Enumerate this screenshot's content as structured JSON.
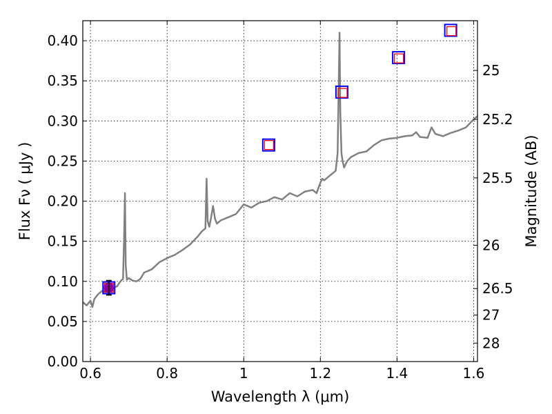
{
  "chart_data": {
    "type": "line",
    "title": "",
    "xlabel": "Wavelength  λ (μm)",
    "ylabel": "Flux  Fν  ( μJy )",
    "y2label": "Magnitude (AB)",
    "xlim": [
      0.58,
      1.61
    ],
    "ylim": [
      0.0,
      0.425
    ],
    "grid": true,
    "x_ticks": [
      0.6,
      0.8,
      1.0,
      1.2,
      1.4,
      1.6
    ],
    "x_tick_labels": [
      "0.6",
      "0.8",
      "1",
      "1.2",
      "1.4",
      "1.6"
    ],
    "y_ticks": [
      0.0,
      0.05,
      0.1,
      0.15,
      0.2,
      0.25,
      0.3,
      0.35,
      0.4
    ],
    "y_tick_labels": [
      "0.00",
      "0.05",
      "0.10",
      "0.15",
      "0.20",
      "0.25",
      "0.30",
      "0.35",
      "0.40"
    ],
    "y2_ticks": [
      {
        "label": "25",
        "flux": 0.363
      },
      {
        "label": "25.2",
        "flux": 0.302
      },
      {
        "label": "25.5",
        "flux": 0.229
      },
      {
        "label": "26",
        "flux": 0.145
      },
      {
        "label": "26.5",
        "flux": 0.091
      },
      {
        "label": "27",
        "flux": 0.058
      },
      {
        "label": "28",
        "flux": 0.023
      }
    ],
    "series": [
      {
        "style": "line",
        "color": "#808080",
        "x": [
          0.58,
          0.59,
          0.6,
          0.605,
          0.61,
          0.62,
          0.63,
          0.64,
          0.65,
          0.66,
          0.67,
          0.675,
          0.68,
          0.685,
          0.688,
          0.69,
          0.692,
          0.695,
          0.7,
          0.71,
          0.72,
          0.73,
          0.735,
          0.74,
          0.75,
          0.76,
          0.78,
          0.8,
          0.82,
          0.84,
          0.86,
          0.88,
          0.89,
          0.9,
          0.903,
          0.906,
          0.91,
          0.915,
          0.92,
          0.925,
          0.93,
          0.94,
          0.96,
          0.98,
          1.0,
          1.02,
          1.04,
          1.06,
          1.08,
          1.1,
          1.12,
          1.14,
          1.16,
          1.18,
          1.19,
          1.2,
          1.205,
          1.21,
          1.22,
          1.24,
          1.245,
          1.25,
          1.252,
          1.255,
          1.258,
          1.262,
          1.27,
          1.28,
          1.3,
          1.32,
          1.34,
          1.36,
          1.38,
          1.4,
          1.42,
          1.44,
          1.45,
          1.46,
          1.48,
          1.49,
          1.5,
          1.52,
          1.54,
          1.56,
          1.58,
          1.6,
          1.61
        ],
        "y": [
          0.074,
          0.07,
          0.076,
          0.068,
          0.078,
          0.084,
          0.088,
          0.087,
          0.09,
          0.092,
          0.094,
          0.098,
          0.101,
          0.103,
          0.16,
          0.21,
          0.12,
          0.102,
          0.104,
          0.101,
          0.1,
          0.103,
          0.107,
          0.111,
          0.113,
          0.115,
          0.124,
          0.129,
          0.133,
          0.139,
          0.146,
          0.156,
          0.162,
          0.166,
          0.228,
          0.175,
          0.168,
          0.18,
          0.194,
          0.178,
          0.172,
          0.176,
          0.18,
          0.184,
          0.196,
          0.192,
          0.198,
          0.2,
          0.205,
          0.202,
          0.21,
          0.206,
          0.212,
          0.214,
          0.21,
          0.223,
          0.228,
          0.226,
          0.23,
          0.238,
          0.26,
          0.41,
          0.31,
          0.26,
          0.25,
          0.242,
          0.25,
          0.255,
          0.26,
          0.262,
          0.27,
          0.276,
          0.278,
          0.279,
          0.281,
          0.282,
          0.286,
          0.28,
          0.279,
          0.292,
          0.284,
          0.281,
          0.285,
          0.288,
          0.292,
          0.302,
          0.306
        ]
      },
      {
        "style": "square_markers",
        "color": "#0000ff",
        "x": [
          0.648,
          1.065,
          1.256,
          1.404,
          1.54
        ],
        "y": [
          0.092,
          0.27,
          0.336,
          0.379,
          0.413
        ]
      },
      {
        "style": "square_markers",
        "color": "#ff0000",
        "x": [
          0.648,
          1.066,
          1.258,
          1.405,
          1.542
        ],
        "y": [
          0.092,
          0.27,
          0.335,
          0.378,
          0.412
        ]
      },
      {
        "style": "circle_marker_with_errorbar",
        "color": "#9400a0",
        "x": [
          0.648
        ],
        "y": [
          0.092
        ],
        "yerr": [
          0.009
        ]
      }
    ]
  }
}
